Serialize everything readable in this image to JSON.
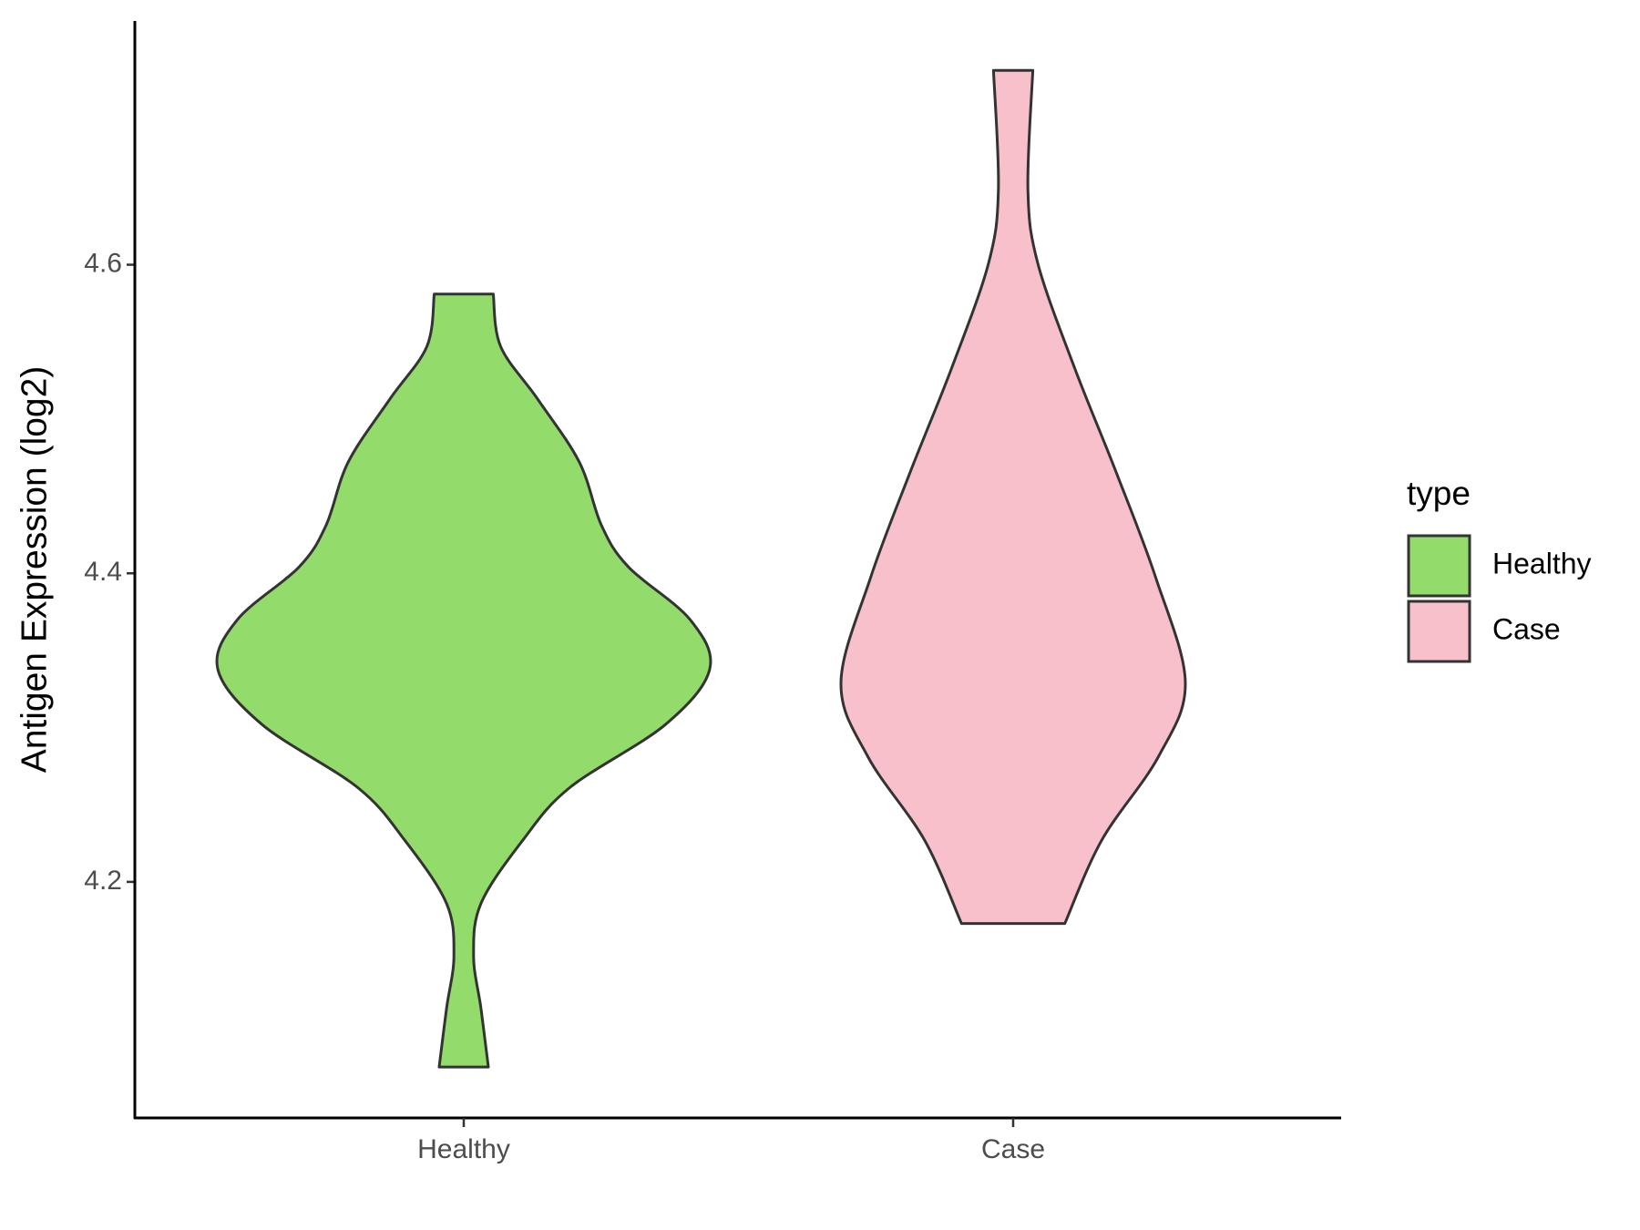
{
  "chart_data": {
    "type": "violin",
    "ylabel": "Antigen Expression (log2)",
    "legend_title": "type",
    "categories": [
      "Healthy",
      "Case"
    ],
    "ylim": [
      4.047,
      4.758
    ],
    "yticks": [
      4.2,
      4.4,
      4.6
    ],
    "legend": "right",
    "series": [
      {
        "name": "Healthy",
        "color": "#93dc6b",
        "y": [
          4.581,
          4.547,
          4.513,
          4.472,
          4.431,
          4.404,
          4.37,
          4.338,
          4.302,
          4.261,
          4.227,
          4.186,
          4.152,
          4.118,
          4.08
        ],
        "widths": [
          0.12,
          0.15,
          0.3,
          0.47,
          0.56,
          0.67,
          0.92,
          1.0,
          0.82,
          0.43,
          0.24,
          0.07,
          0.04,
          0.07,
          0.1
        ]
      },
      {
        "name": "Case",
        "color": "#f8c0cb",
        "y": [
          4.726,
          4.649,
          4.601,
          4.533,
          4.465,
          4.397,
          4.329,
          4.281,
          4.227,
          4.173
        ],
        "widths": [
          0.08,
          0.06,
          0.1,
          0.25,
          0.42,
          0.58,
          0.7,
          0.59,
          0.36,
          0.21
        ]
      }
    ]
  }
}
